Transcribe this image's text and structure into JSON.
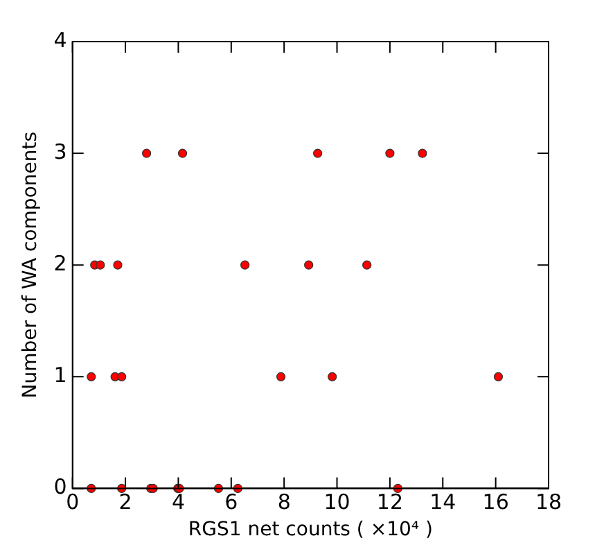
{
  "chart_data": {
    "type": "scatter",
    "xlabel": "RGS1 net counts ( ×10⁴ )",
    "ylabel": "Number of WA components",
    "x": [
      0.71,
      1.86,
      2.96,
      3.05,
      3.98,
      4.04,
      5.52,
      6.25,
      12.3,
      0.71,
      1.61,
      1.86,
      7.88,
      9.82,
      16.1,
      0.84,
      1.05,
      1.71,
      6.52,
      8.93,
      11.13,
      2.8,
      4.16,
      9.27,
      12.0,
      13.23
    ],
    "values": [
      0,
      0,
      0,
      0,
      0,
      0,
      0,
      0,
      0,
      1,
      1,
      1,
      1,
      1,
      1,
      2,
      2,
      2,
      2,
      2,
      2,
      3,
      3,
      3,
      3,
      3
    ],
    "color": "#ff0000",
    "marker": "circle",
    "grid": false,
    "xlim": [
      0,
      18
    ],
    "xticks": [
      0,
      2,
      4,
      6,
      8,
      10,
      12,
      14,
      16,
      18
    ],
    "ylim": [
      0,
      4
    ],
    "yticks": [
      0,
      1,
      2,
      3,
      4
    ]
  }
}
